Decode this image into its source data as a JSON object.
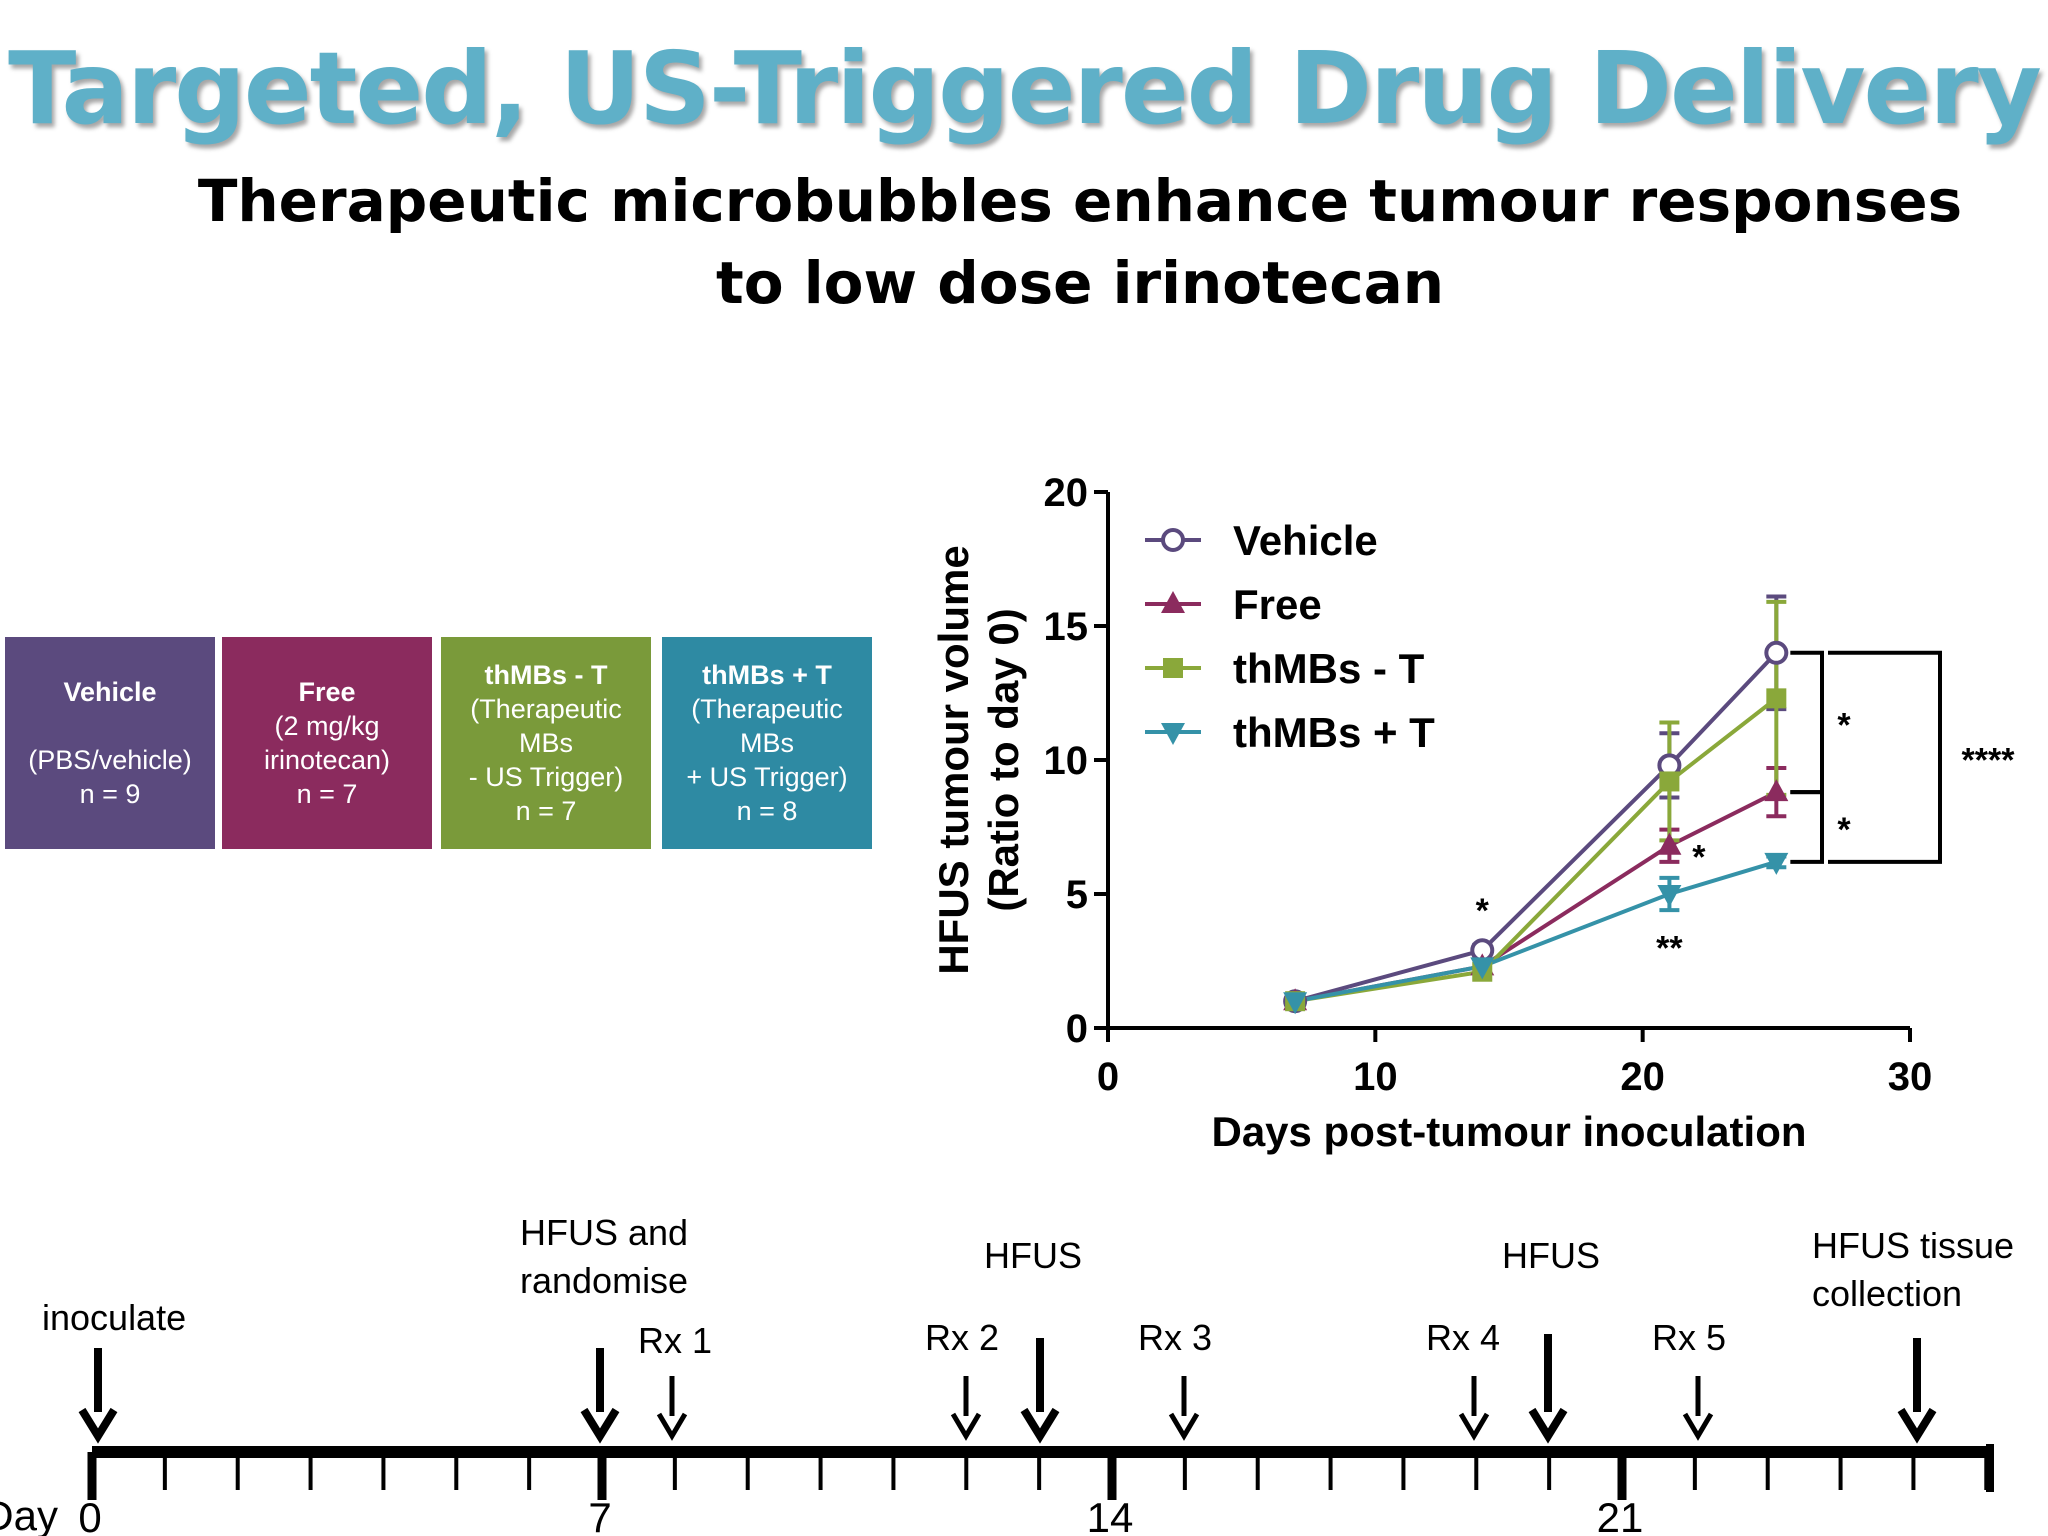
{
  "slide": {
    "title": "Targeted, US-Triggered Drug Delivery",
    "subtitle": "Therapeutic microbubbles enhance tumour responses to low dose irinotecan"
  },
  "groups": [
    {
      "name": "Vehicle",
      "lines": [
        "",
        "(PBS/vehicle)",
        "n = 9"
      ],
      "color": "#5b4a7e"
    },
    {
      "name": "Free",
      "lines": [
        "(2 mg/kg",
        "irinotecan)",
        "n = 7"
      ],
      "color": "#8b2b5e"
    },
    {
      "name": "thMBs - T",
      "lines": [
        "(Therapeutic",
        "MBs",
        "- US Trigger)",
        "n = 7"
      ],
      "color": "#7a9a3a"
    },
    {
      "name": "thMBs + T",
      "lines": [
        "(Therapeutic",
        "MBs",
        "+ US Trigger)",
        "n = 8"
      ],
      "color": "#2e8aa3"
    }
  ],
  "chart_data": {
    "type": "line",
    "xlabel": "Days post-tumour inoculation",
    "ylabel_line1": "HFUS tumour volume",
    "ylabel_line2": "(Ratio to day 0)",
    "xlim": [
      0,
      30
    ],
    "ylim": [
      0,
      20
    ],
    "xticks": [
      0,
      10,
      20,
      30
    ],
    "yticks": [
      0,
      5,
      10,
      15,
      20
    ],
    "x": [
      7,
      14,
      21,
      25
    ],
    "series": [
      {
        "name": "Vehicle",
        "marker": "circle-open",
        "color": "#5b4a7e",
        "values": [
          1.0,
          2.9,
          9.8,
          14.0
        ],
        "errors": [
          0.1,
          0.2,
          1.2,
          2.1
        ]
      },
      {
        "name": "Free",
        "marker": "triangle-up",
        "color": "#8b2b5e",
        "values": [
          1.0,
          2.3,
          6.8,
          8.8
        ],
        "errors": [
          0.1,
          0.15,
          0.6,
          0.9
        ]
      },
      {
        "name": "thMBs - T",
        "marker": "square",
        "color": "#8aa83a",
        "values": [
          1.0,
          2.1,
          9.2,
          12.3
        ],
        "errors": [
          0.1,
          0.15,
          2.2,
          3.6
        ]
      },
      {
        "name": "thMBs + T",
        "marker": "triangle-down",
        "color": "#3592a8",
        "values": [
          1.0,
          2.3,
          5.0,
          6.2
        ],
        "errors": [
          0.1,
          0.15,
          0.6,
          0.2
        ]
      }
    ],
    "annotations": [
      {
        "text": "*",
        "x": 14,
        "y": 4.4
      },
      {
        "text": "*",
        "x": 22.1,
        "y": 6.4
      },
      {
        "text": "**",
        "x": 21,
        "y": 3.0
      }
    ],
    "brackets": [
      {
        "from": "Vehicle",
        "to": "Free",
        "label": "*"
      },
      {
        "from": "Free",
        "to": "thMBs + T",
        "label": "*"
      },
      {
        "from": "Vehicle",
        "to": "thMBs + T",
        "label": "****"
      }
    ]
  },
  "timeline": {
    "day_label": "Day",
    "day_ticks": [
      "0",
      "7",
      "14",
      "21"
    ],
    "events": [
      {
        "id": "inoculate",
        "label_lines": [
          "inoculate"
        ],
        "size": "major"
      },
      {
        "id": "hfus-randomise",
        "label_lines": [
          "HFUS and",
          "randomise"
        ],
        "size": "major"
      },
      {
        "id": "rx1",
        "label_lines": [
          "Rx 1"
        ],
        "size": "minor"
      },
      {
        "id": "rx2",
        "label_lines": [
          "Rx 2"
        ],
        "size": "minor"
      },
      {
        "id": "hfus-1",
        "label_lines": [
          "HFUS"
        ],
        "size": "major"
      },
      {
        "id": "rx3",
        "label_lines": [
          "Rx 3"
        ],
        "size": "minor"
      },
      {
        "id": "rx4",
        "label_lines": [
          "Rx 4"
        ],
        "size": "minor"
      },
      {
        "id": "hfus-2",
        "label_lines": [
          "HFUS"
        ],
        "size": "major"
      },
      {
        "id": "rx5",
        "label_lines": [
          "Rx 5"
        ],
        "size": "minor"
      },
      {
        "id": "hfus-collection",
        "label_lines": [
          "HFUS tissue",
          "collection"
        ],
        "size": "major"
      }
    ]
  }
}
